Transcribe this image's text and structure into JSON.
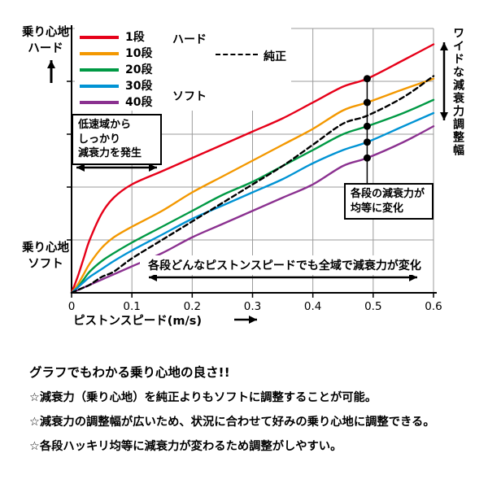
{
  "chart_data": {
    "type": "line",
    "title": "",
    "xlabel": "ピストンスピード(m/s)",
    "ylabel": "",
    "xlim": [
      0,
      0.6
    ],
    "ylim": [
      0,
      100
    ],
    "x_ticks": [
      0,
      0.1,
      0.2,
      0.3,
      0.4,
      0.5,
      0.6
    ],
    "x_tick_labels": [
      "0",
      "0.1",
      "0.2",
      "0.3",
      "0.4",
      "0.5",
      "0.6"
    ],
    "y_gridlines": [
      20,
      40,
      60,
      80,
      100
    ],
    "grid_color": "#9b9b9b",
    "y_axis_label_top": "乗り心地\nハード",
    "y_axis_label_bottom": "乗り心地\nソフト",
    "legend_hard": "ハード",
    "legend_soft": "ソフト",
    "x": [
      0,
      0.01,
      0.02,
      0.03,
      0.05,
      0.07,
      0.1,
      0.15,
      0.2,
      0.25,
      0.3,
      0.35,
      0.4,
      0.45,
      0.49,
      0.55,
      0.6
    ],
    "series": [
      {
        "name": "1段",
        "color": "#e60019",
        "dashed": false,
        "values": [
          0,
          6,
          13,
          20,
          30,
          36,
          41,
          46,
          51,
          56,
          61,
          66,
          72,
          78,
          81,
          88,
          94
        ]
      },
      {
        "name": "10段",
        "color": "#f39800",
        "dashed": false,
        "values": [
          0,
          3,
          7,
          11,
          17,
          21,
          25,
          31,
          38,
          44,
          50,
          56,
          62,
          69,
          72,
          77,
          81
        ]
      },
      {
        "name": "20段",
        "color": "#009944",
        "dashed": false,
        "values": [
          0,
          2,
          5,
          8,
          12,
          15,
          19,
          25,
          31,
          37,
          42,
          48,
          54,
          60,
          63,
          68,
          73
        ]
      },
      {
        "name": "30段",
        "color": "#0093d4",
        "dashed": false,
        "values": [
          0,
          2,
          4,
          6,
          9,
          12,
          16,
          22,
          28,
          33,
          38,
          43,
          49,
          54,
          57,
          63,
          68
        ]
      },
      {
        "name": "40段",
        "color": "#8b3190",
        "dashed": false,
        "values": [
          0,
          1,
          2,
          3,
          5,
          7,
          10,
          15,
          21,
          26,
          31,
          36,
          41,
          48,
          51,
          57,
          63
        ]
      },
      {
        "name": "純正",
        "color": "#000000",
        "dashed": true,
        "values": [
          0,
          1,
          2,
          3,
          6,
          8,
          13,
          20,
          27,
          34,
          41,
          48,
          56,
          64,
          67,
          74,
          82
        ]
      }
    ],
    "markers": {
      "x": 0.49,
      "values": [
        81,
        72,
        63,
        57,
        51
      ]
    }
  },
  "annotations": {
    "low_speed_box": "低速域から\nしっかり\n減衰力を発生",
    "equal_change_box": "各段の減衰力が\n均等に変化",
    "full_range_note": "各段どんなピストンスピードでも全域で減衰力が変化",
    "wide_range_vertical": "ワイドな減衰力調整幅"
  },
  "footer": {
    "heading": "グラフでもわかる乗り心地の良さ!!",
    "bullets": [
      "☆減衰力（乗り心地）を純正よりもソフトに調整することが可能。",
      "☆減衰力の調整幅が広いため、状況に合わせて好みの乗り心地に調整できる。",
      "☆各段ハッキリ均等に減衰力が変わるため調整がしやすい。"
    ]
  }
}
